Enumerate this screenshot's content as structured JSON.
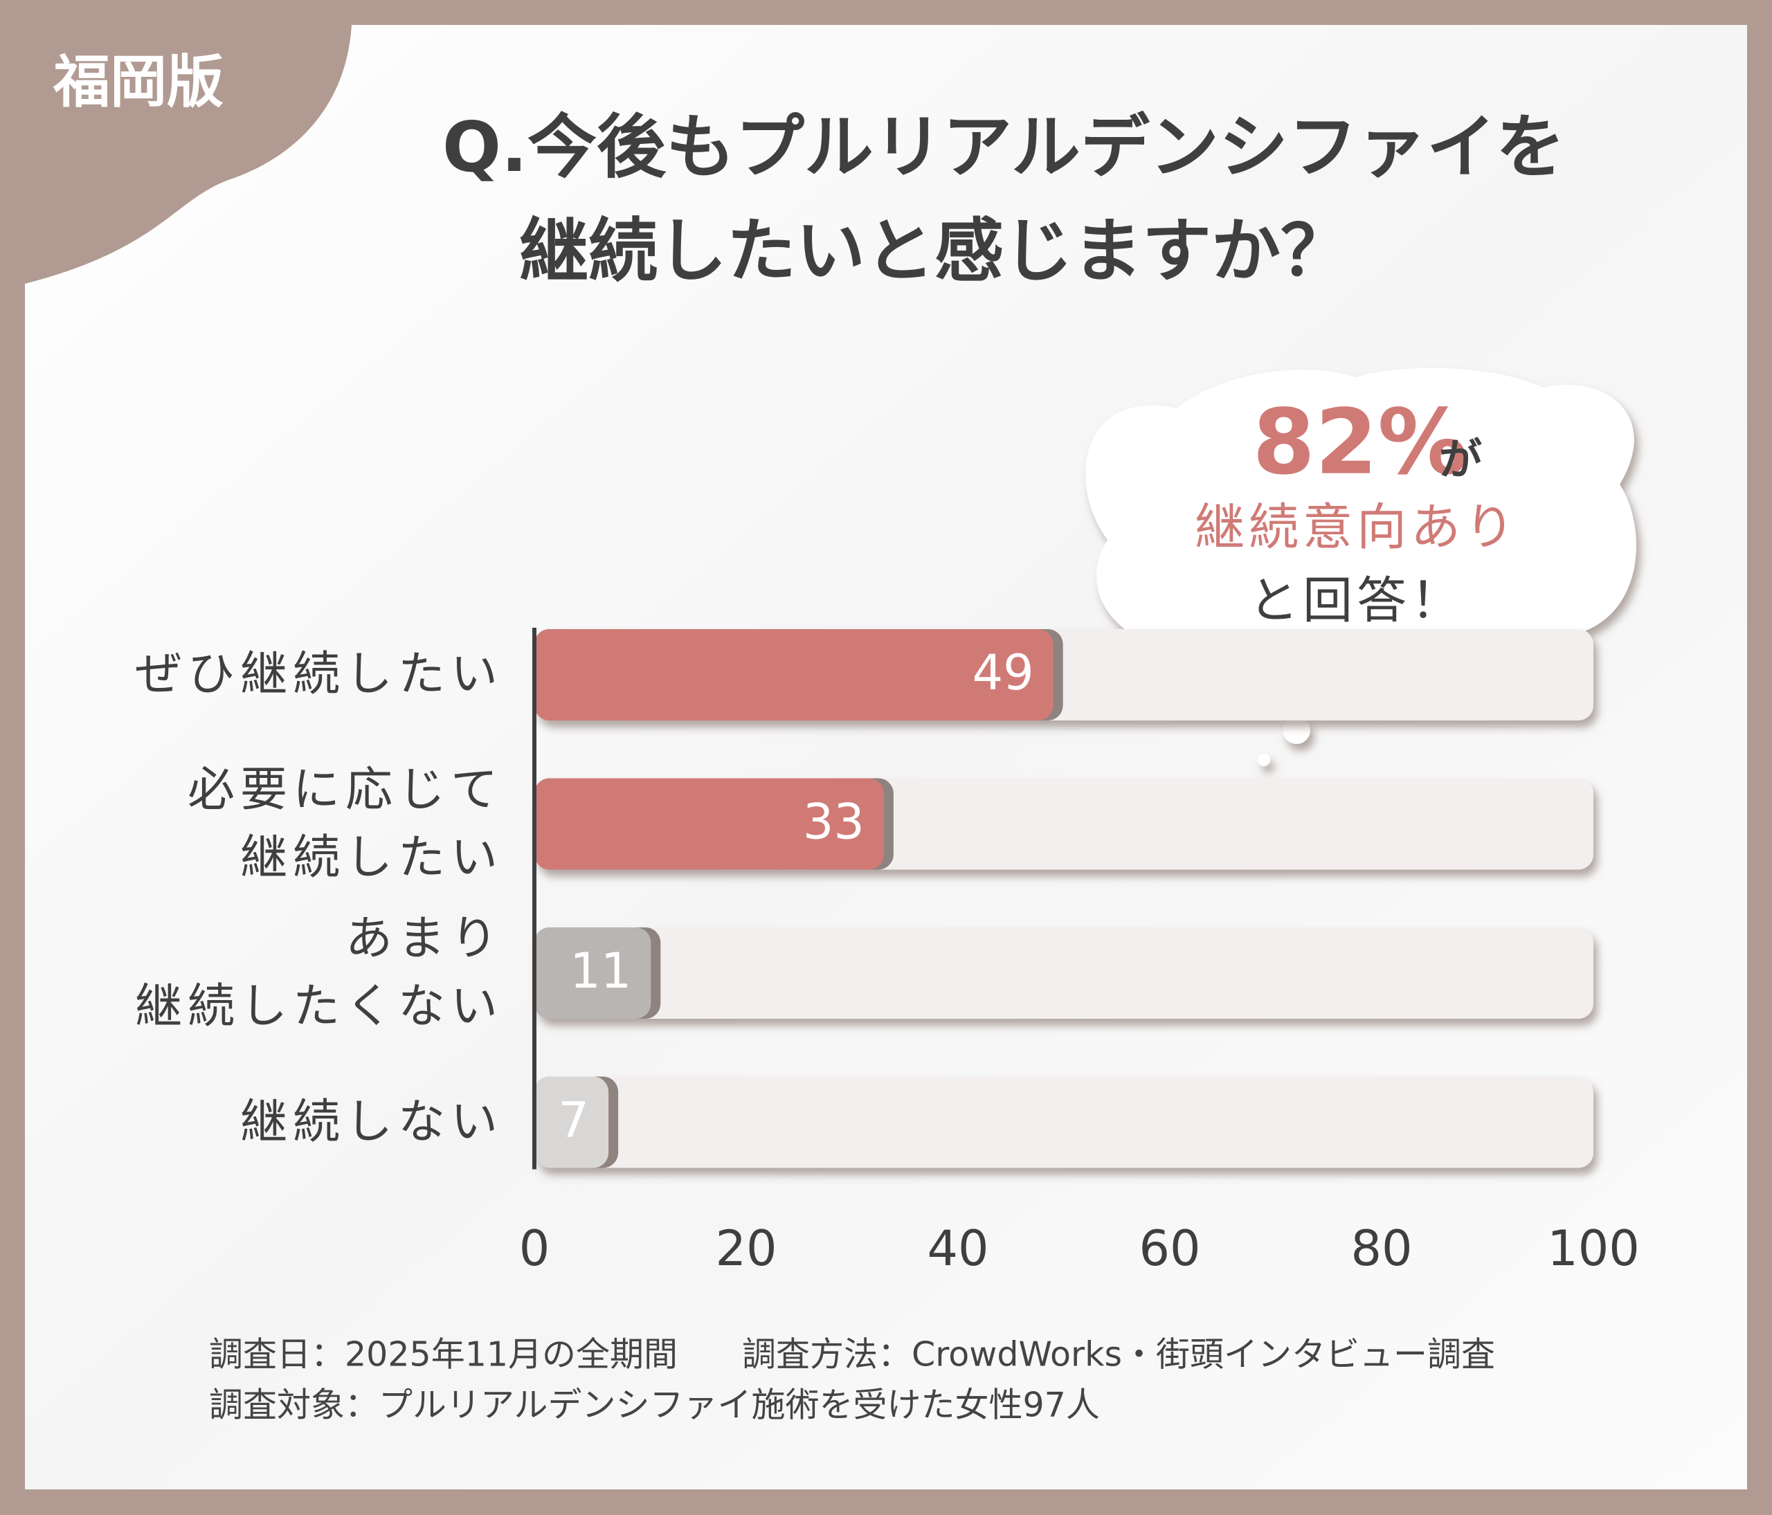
{
  "badge": "福岡版",
  "chart_data": {
    "type": "barh",
    "title": "Q.今後もプルリアルデンシファイを\n継続したいと感じますか？",
    "categories": [
      "ぜひ継続したい",
      "必要に応じて\n継続したい",
      "あまり\n継続したくない",
      "継続しない"
    ],
    "values": [
      49,
      33,
      11,
      7
    ],
    "colors": [
      "#d07a76",
      "#d07a76",
      "#b9b5b3",
      "#d9d7d6"
    ],
    "track_color": "#f2efee",
    "xlim": [
      0,
      100
    ],
    "xticks": [
      0,
      20,
      40,
      60,
      80,
      100
    ],
    "annotation": {
      "highlight": "82%",
      "suffix": "が",
      "line2": "継続意向あり",
      "line3": "と回答！"
    }
  },
  "footer": {
    "date": "調査日：2025年11月の全期間",
    "method": "調査方法：CrowdWorks・街頭インタビュー調査",
    "target": "調査対象：プルリアルデンシファイ施術を受けた女性97人"
  }
}
